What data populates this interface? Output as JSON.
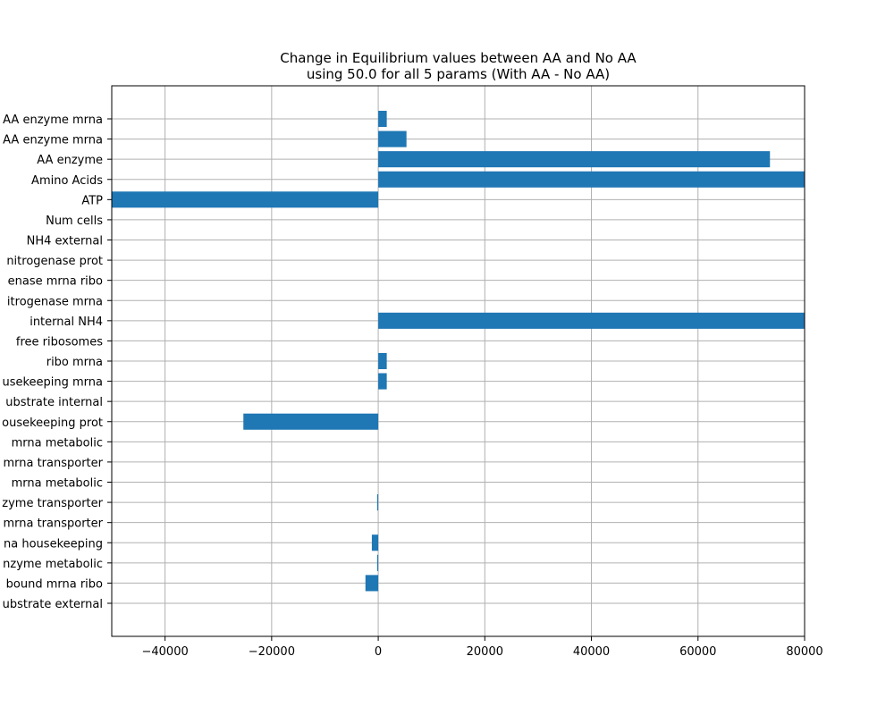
{
  "chart_data": {
    "type": "bar",
    "orientation": "horizontal",
    "title": "Change in Equilibrium values between AA and No AA",
    "subtitle": "using 50.0 for all 5 params (With AA - No AA)",
    "xlabel": "",
    "ylabel": "",
    "xlim": [
      -50000,
      80000
    ],
    "xticks": [
      -40000,
      -20000,
      0,
      20000,
      40000,
      60000,
      80000
    ],
    "xtick_labels": [
      "−40000",
      "−20000",
      "0",
      "20000",
      "40000",
      "60000",
      "80000"
    ],
    "grid": true,
    "bar_color": "#1f77b4",
    "categories": [
      "AA enzyme mrna",
      "AA enzyme mrna",
      "AA enzyme",
      "Amino Acids",
      "ATP",
      "Num cells",
      "NH4 external",
      "nitrogenase prot",
      "enase mrna ribo",
      "itrogenase mrna",
      "internal NH4",
      "free ribosomes",
      "ribo mrna",
      "usekeeping mrna",
      "ubstrate internal",
      "ousekeeping prot",
      "mrna metabolic",
      "mrna transporter",
      "mrna metabolic",
      "zyme transporter",
      "mrna transporter",
      "na housekeeping",
      "nzyme metabolic",
      "bound mrna ribo",
      "ubstrate external"
    ],
    "values": [
      1600,
      5300,
      73500,
      85000,
      -60000,
      0,
      0,
      0,
      0,
      0,
      85000,
      0,
      1600,
      1600,
      0,
      -25300,
      0,
      0,
      0,
      -200,
      0,
      -1200,
      -200,
      -2400,
      0
    ]
  }
}
